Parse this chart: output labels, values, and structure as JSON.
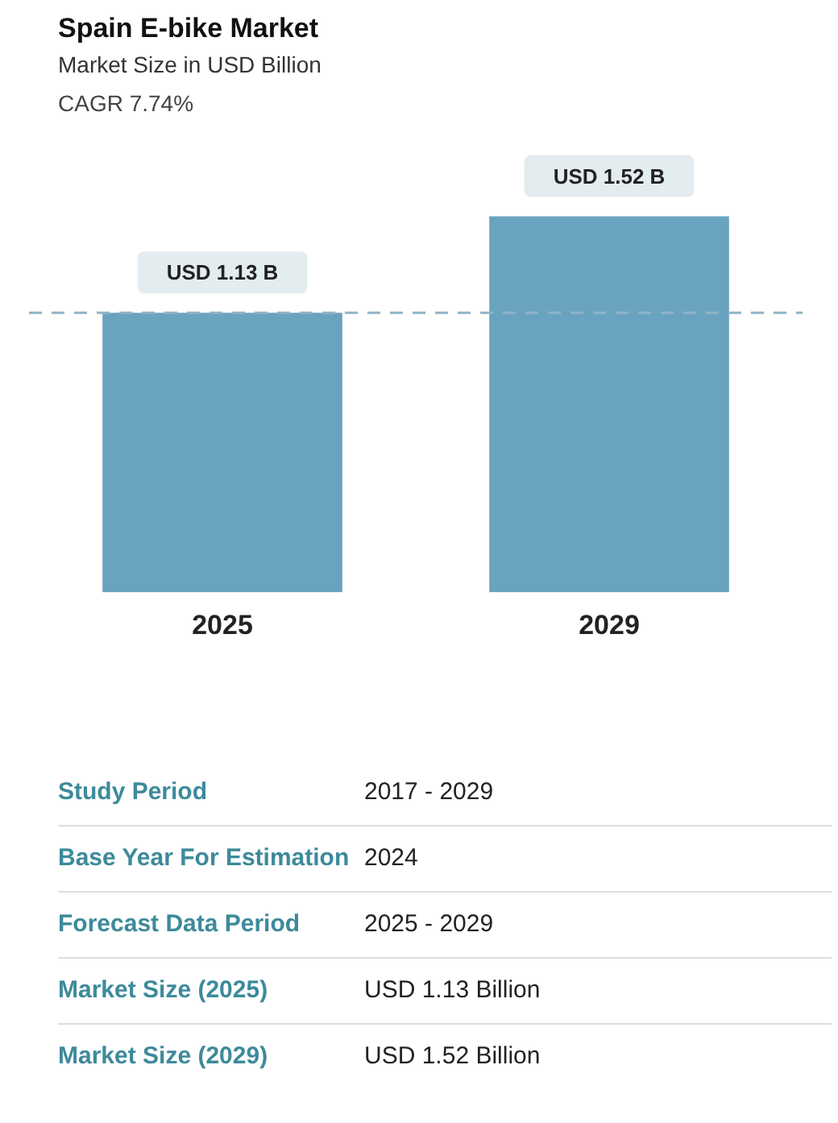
{
  "chart_data": [
    {
      "type": "bar",
      "title": "Spain E-bike Market",
      "subtitle": "Market Size in USD Billion",
      "annotations": [
        "CAGR 7.74%"
      ],
      "categories": [
        "2025",
        "2029"
      ],
      "values": [
        1.13,
        1.52
      ],
      "color": "#6aa3bf",
      "value_labels": [
        "USD 1.13 B",
        "USD 1.52 B"
      ],
      "ref_lines": [
        {
          "axis": "y",
          "value": 1.13,
          "color": "#8fb4c6",
          "line_style": "dashed"
        }
      ],
      "legend": false
    },
    {
      "type": "other",
      "annotations": [
        "Study Period",
        "2017 - 2029",
        "Base Year For Estimation",
        "2024",
        "Forecast Data Period",
        "2025 - 2029",
        "Market Size (2025)",
        "USD 1.13 Billion",
        "Market Size (2029)",
        "USD 1.52 Billion"
      ]
    }
  ]
}
